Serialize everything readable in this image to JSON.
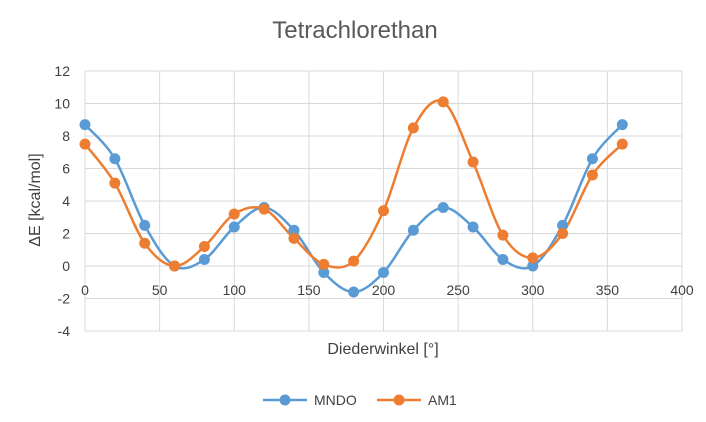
{
  "chart_data": {
    "type": "line",
    "title": "Tetrachlorethan",
    "xlabel": "Diederwinkel [°]",
    "ylabel": "ΔE [kcal/mol]",
    "xlim": [
      0,
      400
    ],
    "ylim": [
      -4,
      12
    ],
    "xticks": [
      0,
      50,
      100,
      150,
      200,
      250,
      300,
      350,
      400
    ],
    "yticks": [
      -4,
      -2,
      0,
      2,
      4,
      6,
      8,
      10,
      12
    ],
    "grid": true,
    "legend_position": "bottom",
    "series": [
      {
        "name": "MNDO",
        "color": "#5b9bd5",
        "x": [
          0,
          20,
          40,
          60,
          80,
          100,
          120,
          140,
          160,
          180,
          200,
          220,
          240,
          260,
          280,
          300,
          320,
          340,
          360
        ],
        "y": [
          8.7,
          6.6,
          2.5,
          0.0,
          0.4,
          2.4,
          3.6,
          2.2,
          -0.4,
          -1.6,
          -0.4,
          2.2,
          3.6,
          2.4,
          0.4,
          0.0,
          2.5,
          6.6,
          8.7
        ]
      },
      {
        "name": "AM1",
        "color": "#ed7d31",
        "x": [
          0,
          20,
          40,
          60,
          80,
          100,
          120,
          140,
          160,
          180,
          200,
          220,
          240,
          260,
          280,
          300,
          320,
          340,
          360
        ],
        "y": [
          7.5,
          5.1,
          1.4,
          0.0,
          1.2,
          3.2,
          3.5,
          1.7,
          0.1,
          0.3,
          3.4,
          8.5,
          10.1,
          6.4,
          1.9,
          0.5,
          2.0,
          5.6,
          7.5
        ]
      }
    ]
  }
}
